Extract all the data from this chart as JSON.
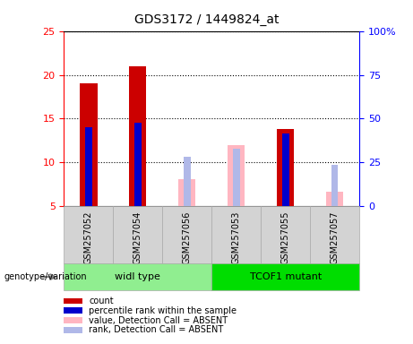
{
  "title": "GDS3172 / 1449824_at",
  "categories": [
    "GSM257052",
    "GSM257054",
    "GSM257056",
    "GSM257053",
    "GSM257055",
    "GSM257057"
  ],
  "groups": [
    {
      "label": "widl type",
      "indices": [
        0,
        1,
        2
      ],
      "color": "#90ee90"
    },
    {
      "label": "TCOF1 mutant",
      "indices": [
        3,
        4,
        5
      ],
      "color": "#00dd00"
    }
  ],
  "count_values": [
    19.0,
    21.0,
    null,
    null,
    13.8,
    null
  ],
  "percentile_values": [
    14.0,
    14.5,
    null,
    null,
    13.3,
    null
  ],
  "absent_value_values": [
    null,
    null,
    8.1,
    12.0,
    null,
    6.7
  ],
  "absent_rank_values": [
    null,
    null,
    10.7,
    11.6,
    null,
    9.7
  ],
  "ylim": [
    5,
    25
  ],
  "yticks": [
    5,
    10,
    15,
    20,
    25
  ],
  "y2lim": [
    0,
    100
  ],
  "y2ticks": [
    0,
    25,
    50,
    75,
    100
  ],
  "y2ticklabels": [
    "0",
    "25",
    "50",
    "75",
    "100%"
  ],
  "bar_width": 0.35,
  "count_color": "#cc0000",
  "percentile_color": "#0000cc",
  "absent_value_color": "#ffb6c1",
  "absent_rank_color": "#b0b8e8",
  "legend_items": [
    {
      "color": "#cc0000",
      "label": "count"
    },
    {
      "color": "#0000cc",
      "label": "percentile rank within the sample"
    },
    {
      "color": "#ffb6c1",
      "label": "value, Detection Call = ABSENT"
    },
    {
      "color": "#b0b8e8",
      "label": "rank, Detection Call = ABSENT"
    }
  ],
  "genotype_label": "genotype/variation"
}
